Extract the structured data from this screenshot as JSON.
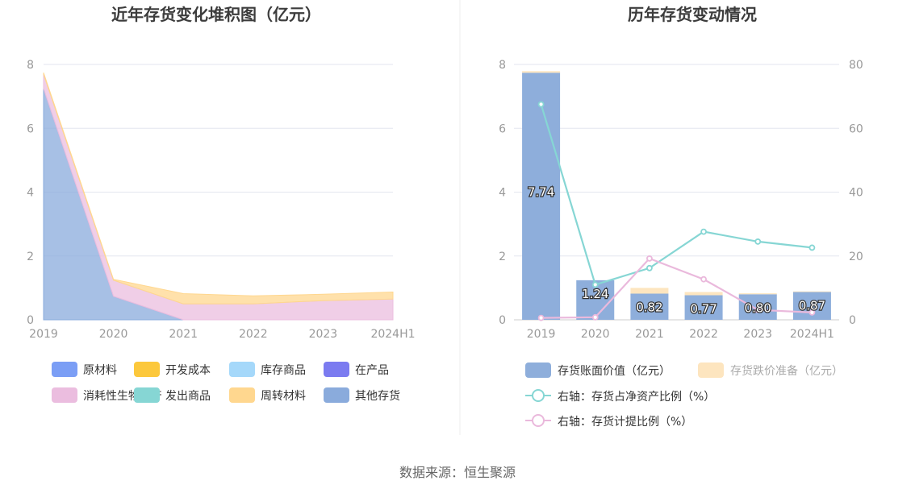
{
  "source_label": "数据来源：恒生聚源",
  "chart_data": [
    {
      "type": "area",
      "title": "近年存货变化堆积图（亿元）",
      "categories": [
        "2019",
        "2020",
        "2021",
        "2022",
        "2023",
        "2024H1"
      ],
      "ylim": [
        0,
        8
      ],
      "yticks": [
        "0",
        "2",
        "4",
        "6",
        "8"
      ],
      "grid": true,
      "legend_placement": "bottom",
      "series": [
        {
          "name": "原材料",
          "color": "#7b9ef5",
          "values": [
            0,
            0,
            0,
            0,
            0,
            0
          ]
        },
        {
          "name": "开发成本",
          "color": "#fcc83c",
          "values": [
            0,
            0,
            0,
            0,
            0,
            0
          ]
        },
        {
          "name": "库存商品",
          "color": "#a5d8fa",
          "values": [
            0,
            0,
            0,
            0,
            0,
            0
          ]
        },
        {
          "name": "在产品",
          "color": "#7b7bf0",
          "values": [
            0,
            0,
            0,
            0,
            0,
            0
          ]
        },
        {
          "name": "消耗性生物资产",
          "color": "#ebbddf",
          "values": [
            0.45,
            0.5,
            0.5,
            0.5,
            0.6,
            0.65
          ]
        },
        {
          "name": "发出商品",
          "color": "#86d6d4",
          "values": [
            0,
            0,
            0,
            0,
            0,
            0
          ]
        },
        {
          "name": "周转材料",
          "color": "#ffd78f",
          "values": [
            0.05,
            0.03,
            0.32,
            0.25,
            0.2,
            0.22
          ]
        },
        {
          "name": "其他存货",
          "color": "#8aabdc",
          "values": [
            7.24,
            0.74,
            0,
            0,
            0,
            0
          ]
        }
      ],
      "stack_order": [
        "其他存货",
        "消耗性生物资产",
        "周转材料"
      ]
    },
    {
      "type": "bar",
      "title": "历年存货变动情况",
      "categories": [
        "2019",
        "2020",
        "2021",
        "2022",
        "2023",
        "2024H1"
      ],
      "ylim": [
        0,
        8
      ],
      "yticks": [
        "0",
        "2",
        "4",
        "6",
        "8"
      ],
      "y2lim": [
        0,
        80
      ],
      "y2ticks": [
        "0",
        "20",
        "40",
        "60",
        "80"
      ],
      "grid": true,
      "legend_placement": "bottom",
      "series": [
        {
          "name": "存货账面价值（亿元）",
          "kind": "bar",
          "color": "#8eaedb",
          "values": [
            7.74,
            1.24,
            0.82,
            0.77,
            0.8,
            0.87
          ],
          "labels": [
            "7.74",
            "1.24",
            "0.82",
            "0.77",
            "0.80",
            "0.87"
          ]
        },
        {
          "name": "存货跌价准备（亿元）",
          "kind": "bar",
          "color": "#fde5bf",
          "values": [
            0.05,
            0,
            0.18,
            0.1,
            0.03,
            0.02
          ]
        },
        {
          "name": "右轴：存货占净资产比例（%）",
          "kind": "line",
          "axis": "right",
          "color": "#86d6d4",
          "values": [
            67.5,
            11.0,
            16.2,
            27.6,
            24.5,
            22.6
          ]
        },
        {
          "name": "右轴：存货计提比例（%）",
          "kind": "line",
          "axis": "right",
          "color": "#eab9dc",
          "values": [
            0.6,
            0.8,
            19.2,
            12.7,
            3.1,
            2.3
          ]
        }
      ]
    }
  ]
}
